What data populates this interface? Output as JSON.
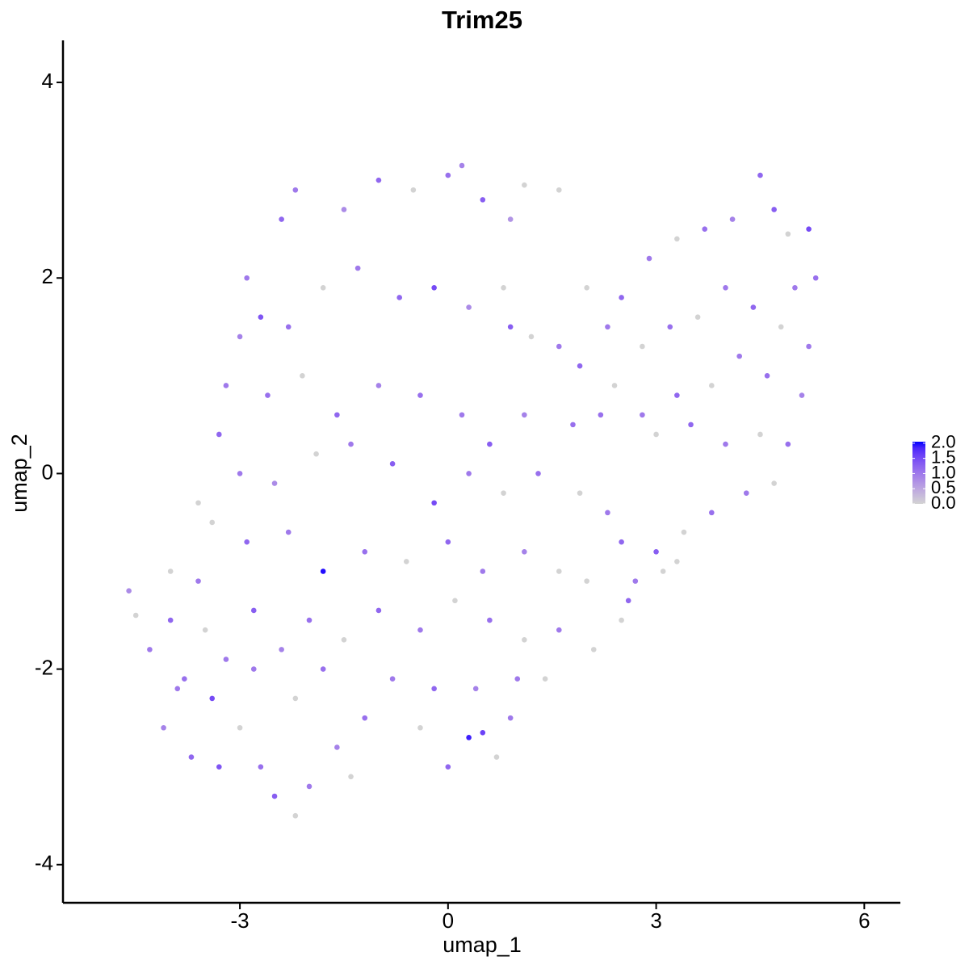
{
  "chart_data": {
    "type": "scatter",
    "title": "Trim25",
    "x_label": "umap_1",
    "y_label": "umap_2",
    "x": [
      -2.2,
      -1.5,
      -1.0,
      -0.5,
      0,
      0.2,
      0.5,
      0.9,
      1.1,
      1.6,
      -2.4,
      -2.9,
      -2.7,
      -2.3,
      -1.8,
      -1.3,
      -0.7,
      -0.2,
      0.3,
      0.8,
      1.2,
      0.9,
      -3.0,
      -3.2,
      -2.6,
      -2.1,
      -1.6,
      -1.0,
      -0.4,
      0.2,
      0.6,
      1.1,
      -3.3,
      -3.0,
      -2.5,
      -1.9,
      -1.4,
      -0.8,
      -0.2,
      0.3,
      0.8,
      1.3,
      -3.4,
      -3.6,
      -2.9,
      -2.3,
      -1.8,
      -1.2,
      -0.6,
      0.0,
      0.5,
      1.1,
      1.6,
      -4.6,
      -4.5,
      -4.3,
      -4.0,
      -3.8,
      -3.5,
      -3.2,
      -2.8,
      -2.4,
      -2.0,
      -1.5,
      -1.0,
      -0.4,
      0.1,
      0.6,
      1.1,
      1.6,
      2.1,
      2.6,
      3.1,
      -4.1,
      -3.7,
      -3.4,
      -3.0,
      -2.7,
      -2.5,
      -2.2,
      -2.0,
      -1.6,
      -1.4,
      -1.2,
      -0.8,
      -0.4,
      0.0,
      0.3,
      0.5,
      0.7,
      0.9,
      -2.8,
      -2.2,
      -1.8,
      -0.2,
      0.4,
      1.0,
      1.4,
      -3.9,
      -3.3,
      -4.0,
      -3.6,
      1.6,
      2.0,
      2.5,
      2.9,
      3.3,
      3.7,
      4.1,
      4.5,
      4.7,
      4.9,
      5.2,
      5.3,
      5.0,
      4.8,
      4.4,
      4.0,
      3.6,
      3.2,
      2.8,
      2.3,
      1.9,
      2.4,
      2.2,
      2.8,
      3.3,
      3.8,
      4.2,
      4.6,
      5.1,
      5.2,
      4.9,
      4.5,
      4.0,
      3.5,
      3.0,
      4.7,
      4.3,
      3.8,
      3.4,
      3.0,
      2.7,
      3.3,
      2.3,
      1.9,
      1.8,
      2.5,
      2.0,
      2.5
    ],
    "values": [
      2.9,
      2.7,
      3.0,
      2.9,
      3.05,
      3.15,
      2.8,
      2.6,
      2.95,
      2.9,
      2.6,
      2.0,
      1.6,
      1.5,
      1.9,
      2.1,
      1.8,
      1.9,
      1.7,
      1.9,
      1.4,
      1.5,
      1.4,
      0.9,
      0.8,
      1.0,
      0.6,
      0.9,
      0.8,
      0.6,
      0.3,
      0.6,
      0.4,
      0.0,
      -0.1,
      0.2,
      0.3,
      0.1,
      -0.3,
      0.0,
      -0.2,
      0.0,
      -0.5,
      -0.3,
      -0.7,
      -0.6,
      -1.0,
      -0.8,
      -0.9,
      -0.7,
      -1.0,
      -0.8,
      -1.0,
      -1.2,
      -1.45,
      -1.8,
      -1.5,
      -2.1,
      -1.6,
      -1.9,
      -1.4,
      -1.8,
      -1.5,
      -1.7,
      -1.4,
      -1.6,
      -1.3,
      -1.5,
      -1.7,
      -1.6,
      -1.8,
      -1.3,
      -1.0,
      -2.6,
      -2.9,
      -2.3,
      -2.6,
      -3.0,
      -3.3,
      -3.5,
      -3.2,
      -2.8,
      -3.1,
      -2.5,
      -2.1,
      -2.6,
      -3.0,
      -2.7,
      -2.65,
      -2.9,
      -2.5,
      -2.0,
      -2.3,
      -2.0,
      -2.2,
      -2.2,
      -2.1,
      -2.1,
      -2.2,
      -3.0,
      -1.0,
      -1.1,
      1.3,
      1.9,
      1.8,
      2.2,
      2.4,
      2.5,
      2.6,
      3.05,
      2.7,
      2.45,
      2.5,
      2.0,
      1.9,
      1.5,
      1.7,
      1.9,
      1.6,
      1.5,
      1.3,
      1.5,
      1.1,
      0.9,
      0.6,
      0.6,
      0.8,
      0.9,
      1.2,
      1.0,
      0.8,
      1.3,
      0.3,
      0.4,
      0.3,
      0.5,
      0.4,
      -0.1,
      -0.2,
      -0.4,
      -0.6,
      -0.8,
      -1.1,
      -0.9,
      -0.4,
      -0.2,
      0.5,
      -0.7,
      -1.1,
      -1.5
    ],
    "expression": [
      1.0,
      0.8,
      1.2,
      0,
      1.1,
      0.9,
      1.3,
      0.7,
      0,
      0,
      1.2,
      1.0,
      1.4,
      1.1,
      0,
      1.0,
      1.2,
      1.5,
      0.8,
      0,
      0,
      1.3,
      0.9,
      1.0,
      1.1,
      0,
      1.2,
      0.9,
      1.1,
      1.0,
      1.3,
      0.9,
      1.2,
      1.0,
      0.8,
      0,
      1.0,
      1.3,
      1.5,
      1.0,
      0,
      1.1,
      0,
      0,
      1.2,
      1.0,
      2.0,
      1.1,
      0,
      1.2,
      1.0,
      0.9,
      0,
      0.8,
      0,
      1.0,
      1.2,
      1.1,
      0,
      1.0,
      1.3,
      0.9,
      1.1,
      0,
      1.2,
      1.0,
      0,
      1.1,
      0,
      1.0,
      0,
      1.2,
      0,
      0.9,
      1.2,
      1.5,
      0,
      1.1,
      1.3,
      0,
      1.0,
      0.9,
      0,
      1.1,
      1.0,
      0,
      1.2,
      1.9,
      1.6,
      0,
      1.0,
      1.0,
      0,
      1.1,
      1.2,
      0.9,
      1.0,
      0,
      1.0,
      1.4,
      0,
      1.0,
      1.0,
      0,
      1.2,
      1.0,
      0,
      1.1,
      0.9,
      1.2,
      1.3,
      0,
      1.5,
      1.1,
      1.0,
      0,
      1.2,
      1.0,
      0,
      1.1,
      0,
      1.0,
      1.2,
      0,
      1.1,
      1.0,
      1.2,
      0,
      1.0,
      1.1,
      0.9,
      1.0,
      1.1,
      0,
      1.0,
      1.2,
      0,
      0,
      1.0,
      1.1,
      0,
      1.3,
      1.0,
      0,
      1.0,
      0,
      1.1,
      1.2,
      0,
      0
    ],
    "color_low": "#d3d3d3",
    "color_high": "#0000ff",
    "xlim": [
      -5.55,
      6.52
    ],
    "ylim": [
      -4.39,
      4.43
    ],
    "xticks": [
      -3,
      0,
      3,
      6
    ],
    "yticks": [
      -4,
      -2,
      0,
      2,
      4
    ],
    "colorbar": {
      "lim": [
        0,
        2.05
      ],
      "ticks": [
        {
          "value": 0,
          "label": "0.0"
        },
        {
          "value": 0.5,
          "label": "0.5"
        },
        {
          "value": 1,
          "label": "1.0"
        },
        {
          "value": 1.5,
          "label": "1.5"
        },
        {
          "value": 2,
          "label": "2.0"
        }
      ]
    }
  }
}
